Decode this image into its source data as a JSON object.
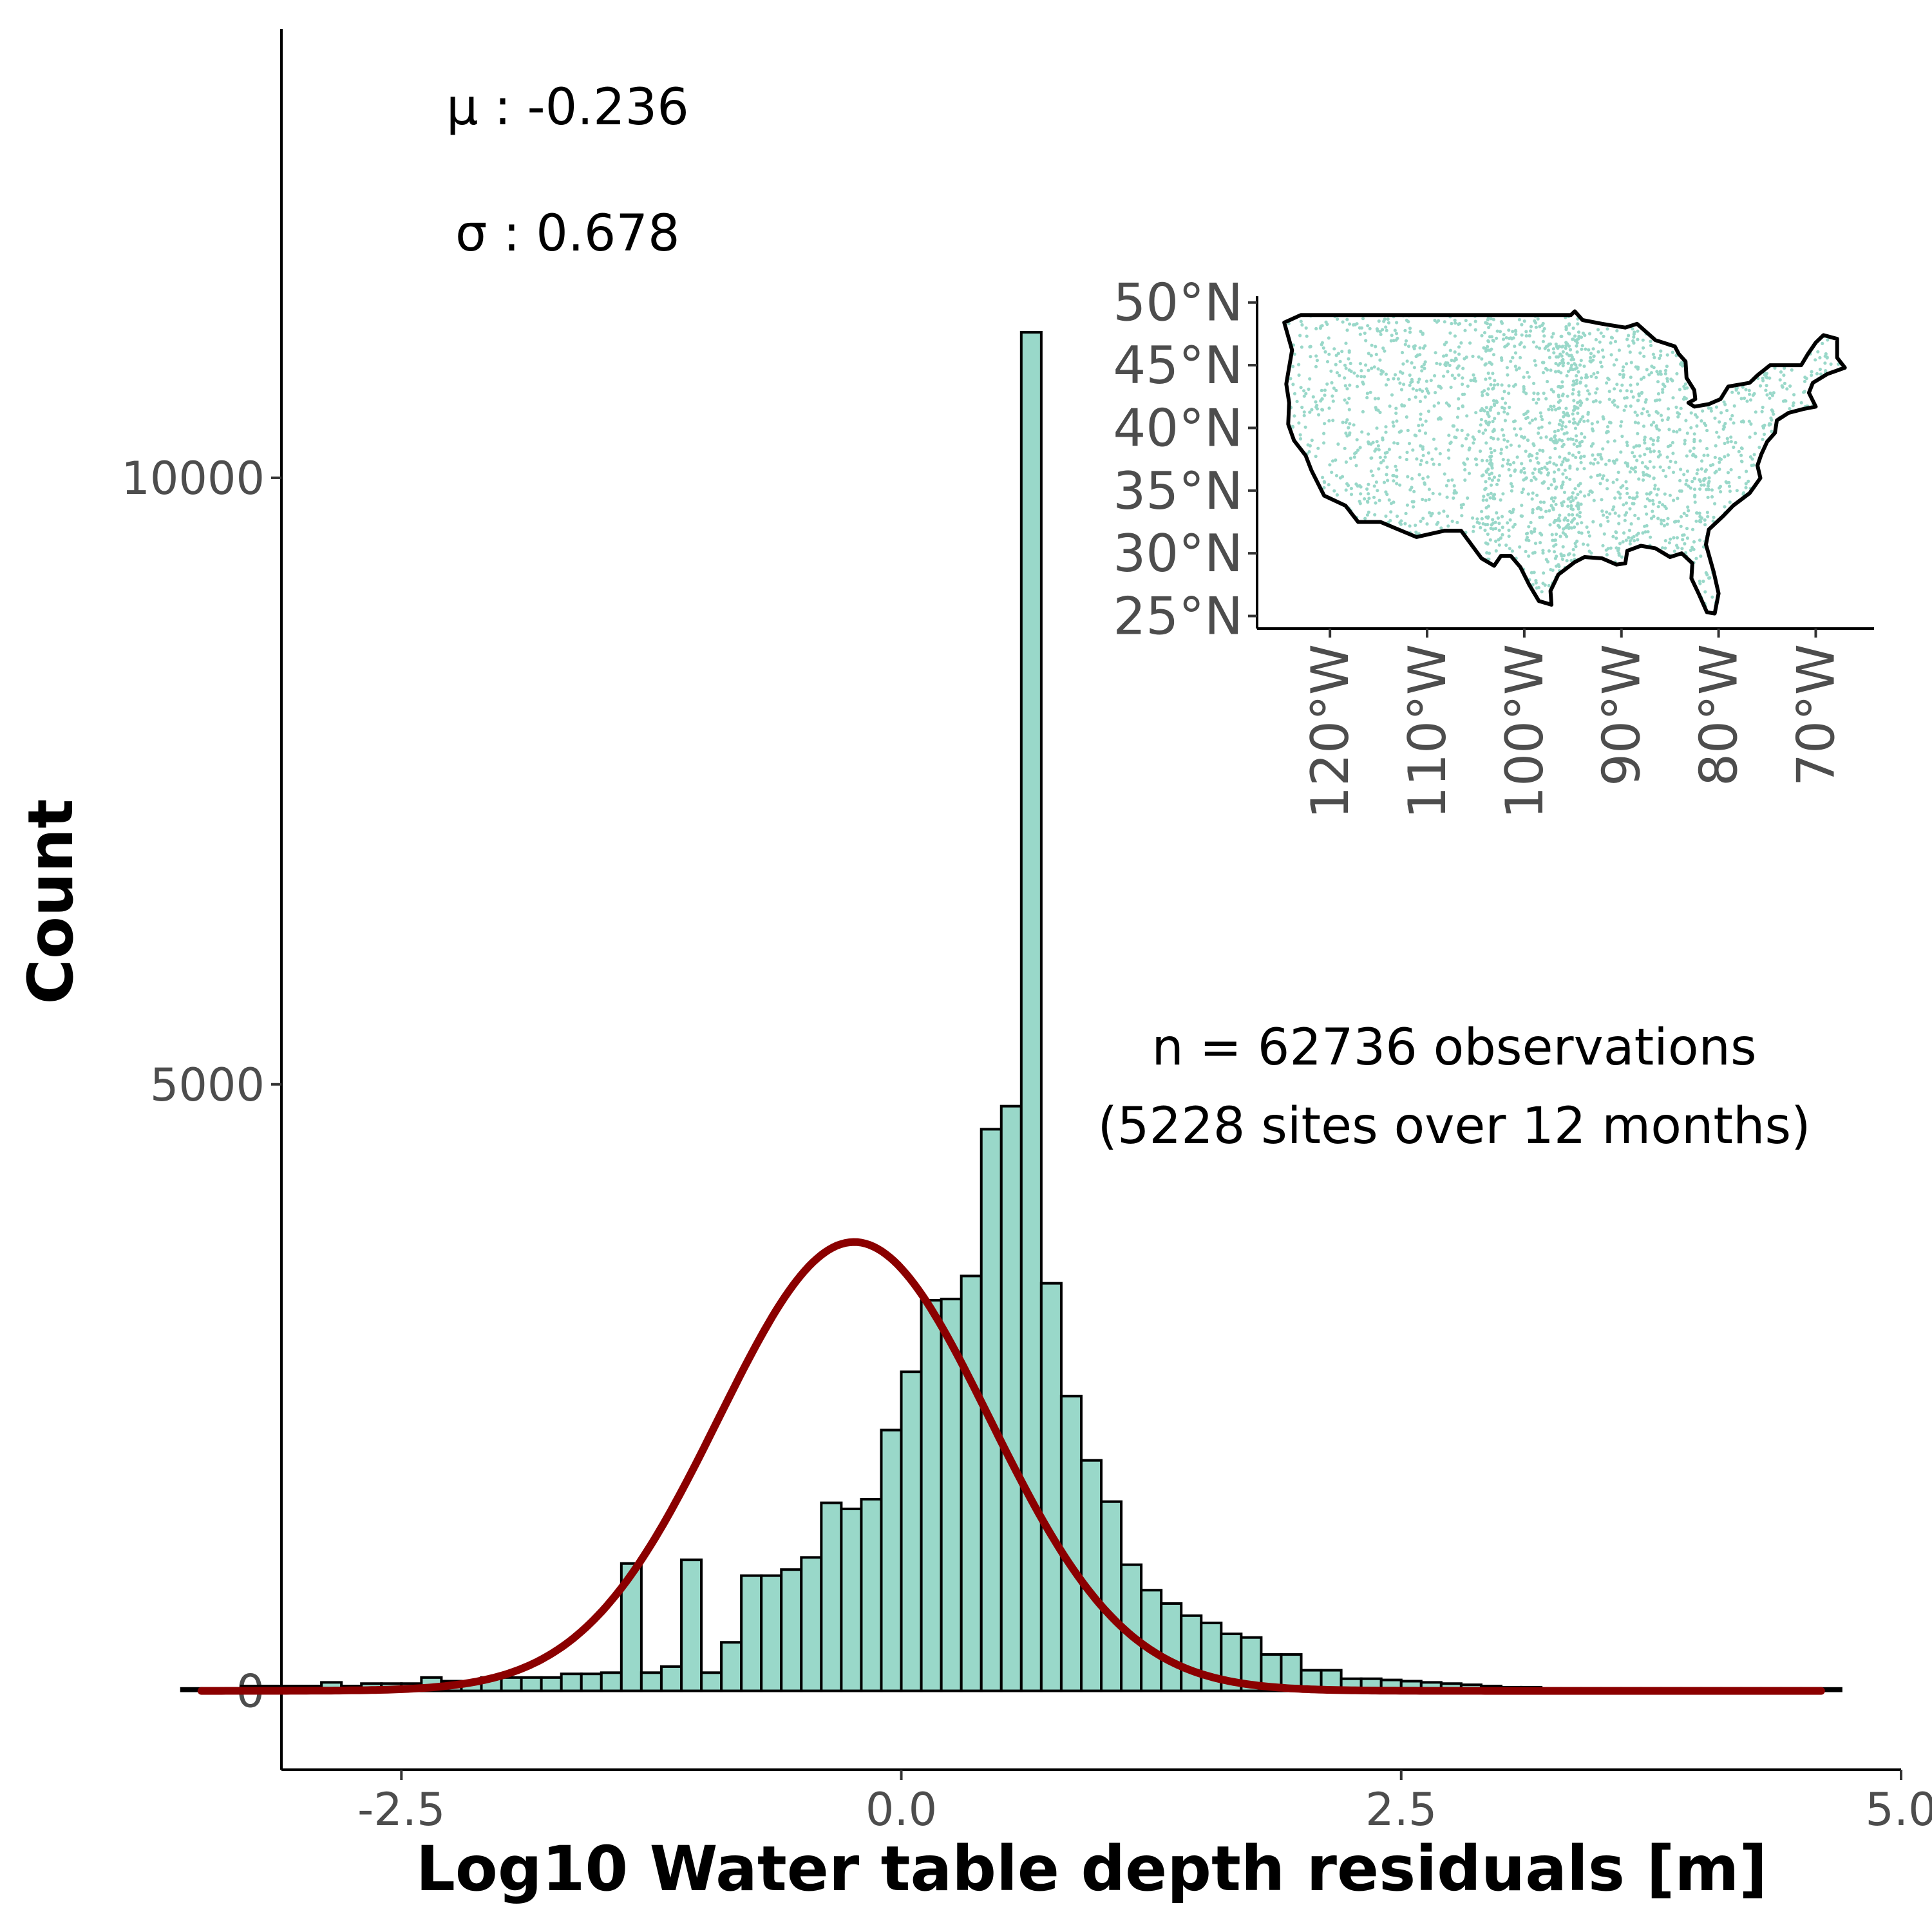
{
  "chart_data": {
    "type": "bar",
    "subtype": "histogram-with-normal-fit",
    "title": "",
    "xlabel": "Log10 Water table depth residuals [m]",
    "ylabel": "Count",
    "xlim": [
      -3.1,
      5.0
    ],
    "ylim": [
      -650,
      13700
    ],
    "x_ticks": [
      -2.5,
      0.0,
      2.5,
      5.0
    ],
    "x_tick_labels": [
      "-2.5",
      "0.0",
      "2.5",
      "5.0"
    ],
    "y_ticks": [
      0,
      5000,
      10000
    ],
    "y_tick_labels": [
      "0",
      "5000",
      "10000"
    ],
    "bin_width": 0.1,
    "bins_start": -3.6,
    "counts": [
      20,
      20,
      20,
      40,
      40,
      40,
      40,
      70,
      40,
      60,
      60,
      60,
      110,
      80,
      60,
      110,
      110,
      110,
      110,
      140,
      140,
      150,
      1050,
      150,
      200,
      1080,
      150,
      400,
      950,
      950,
      1000,
      1100,
      1550,
      1500,
      1580,
      2150,
      2630,
      3220,
      3230,
      3420,
      4630,
      4820,
      11200,
      3360,
      2430,
      1900,
      1560,
      1040,
      830,
      720,
      620,
      560,
      470,
      440,
      300,
      300,
      170,
      170,
      100,
      100,
      90,
      80,
      70,
      60,
      50,
      40,
      30,
      30,
      20,
      20,
      20,
      20,
      20,
      20,
      20,
      20,
      20,
      20,
      20,
      20,
      20,
      20,
      20
    ],
    "series": [
      {
        "name": "normal fit",
        "mu": -0.236,
        "sigma": 0.678,
        "peak_count": 3700,
        "color": "#8b0000"
      }
    ],
    "colors": {
      "bar_fill": "#99d8c9",
      "bar_edge": "#000000",
      "curve": "#8b0000"
    },
    "annotations": {
      "mu_label": "μ :  -0.236",
      "sigma_label": "σ :  0.678",
      "n_label": "n = 62736 observations",
      "sites_label": "(5228 sites over 12 months)"
    },
    "inset_map": {
      "region": "Contiguous United States",
      "point_color": "#99d8c9",
      "lat_ticks": [
        25,
        30,
        35,
        40,
        45,
        50
      ],
      "lat_tick_labels": [
        "25°N",
        "30°N",
        "35°N",
        "40°N",
        "45°N",
        "50°N"
      ],
      "lon_ticks": [
        -120,
        -110,
        -100,
        -90,
        -80,
        -70
      ],
      "lon_tick_labels": [
        "120°W",
        "110°W",
        "100°W",
        "90°W",
        "80°W",
        "70°W"
      ],
      "lat_range": [
        24,
        50.5
      ],
      "lon_range": [
        -127.5,
        -64
      ]
    }
  }
}
